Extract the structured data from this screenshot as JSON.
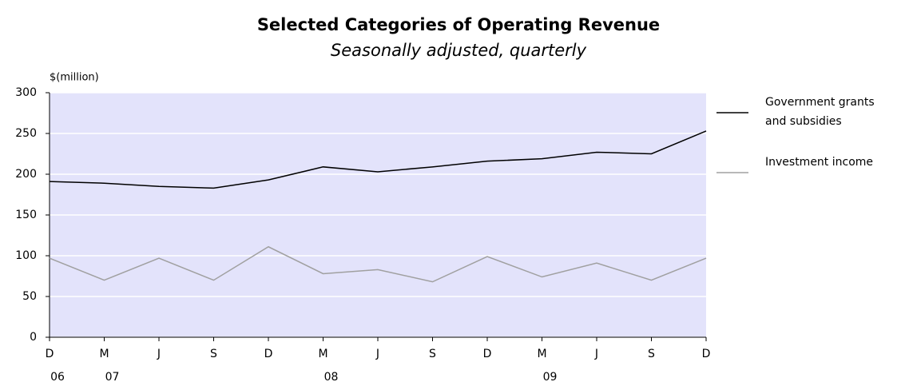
{
  "chart_data": {
    "type": "line",
    "title": "Selected Categories of Operating Revenue",
    "subtitle": "Seasonally adjusted, quarterly",
    "y_label": "$(million)",
    "categories": [
      "D",
      "M",
      "J",
      "S",
      "D",
      "M",
      "J",
      "S",
      "D",
      "M",
      "J",
      "S",
      "D"
    ],
    "category_years": [
      "06",
      "07",
      null,
      null,
      null,
      "08",
      null,
      null,
      null,
      "09",
      null,
      null,
      null
    ],
    "series": [
      {
        "name": "Government grants and subsidies",
        "color": "#000000",
        "values": [
          191,
          189,
          185,
          183,
          193,
          209,
          203,
          209,
          216,
          219,
          227,
          225,
          253
        ]
      },
      {
        "name": "Investment income",
        "color": "#a0a0a0",
        "values": [
          97,
          70,
          97,
          70,
          111,
          78,
          83,
          68,
          99,
          74,
          91,
          70,
          97
        ]
      }
    ],
    "ylim": [
      0,
      300
    ],
    "yticks": [
      0,
      50,
      100,
      150,
      200,
      250,
      300
    ],
    "grid": true,
    "plot_background": "#e3e3fb"
  }
}
